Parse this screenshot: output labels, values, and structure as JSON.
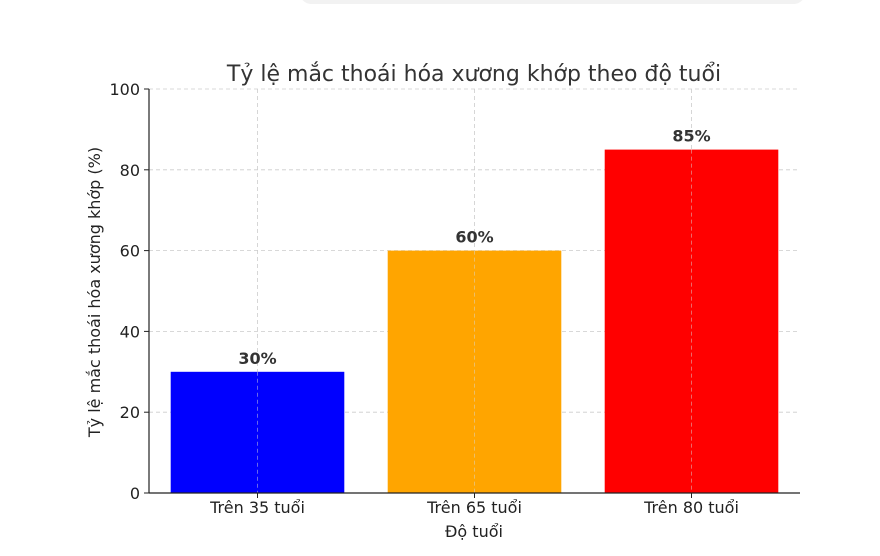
{
  "chart_data": {
    "type": "bar",
    "title": "Tỷ lệ mắc thoái hóa xương khớp theo độ tuổi",
    "xlabel": "Độ tuổi",
    "ylabel": "Tỷ lệ mắc thoái hóa xương khớp (%)",
    "categories": [
      "Trên 35 tuổi",
      "Trên 65 tuổi",
      "Trên 80 tuổi"
    ],
    "values": [
      30,
      60,
      85
    ],
    "data_labels": [
      "30%",
      "60%",
      "85%"
    ],
    "colors": [
      "#0000ff",
      "#ffa500",
      "#ff0000"
    ],
    "ylim": [
      0,
      100
    ],
    "yticks": [
      0,
      20,
      40,
      60,
      80,
      100
    ],
    "grid": true
  }
}
